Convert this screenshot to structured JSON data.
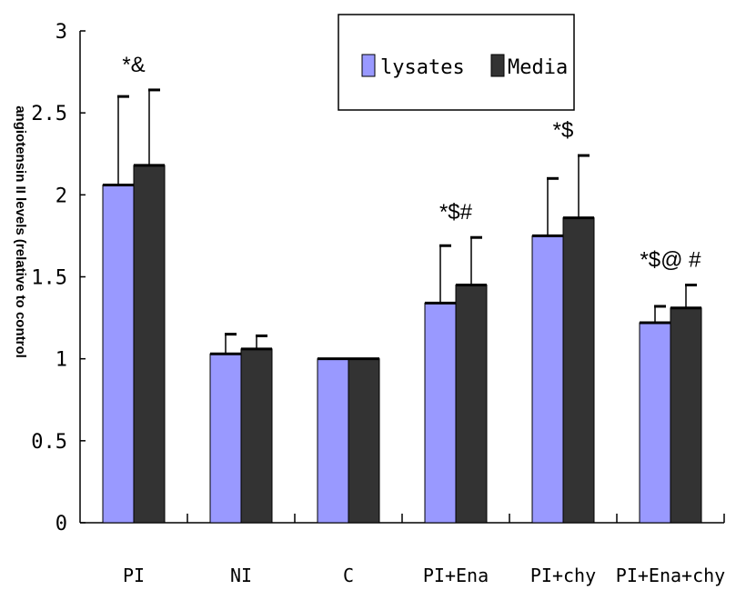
{
  "chart_data": {
    "type": "bar",
    "title": "",
    "xlabel": "",
    "ylabel": "angiotensin II levels (relative to control",
    "ylim": [
      0,
      3
    ],
    "yticks": [
      "0",
      "0.5",
      "1",
      "1.5",
      "2",
      "2.5",
      "3"
    ],
    "categories": [
      "PI",
      "NI",
      "C",
      "PI+Ena",
      "PI+chy",
      "PI+Ena+chy"
    ],
    "series": [
      {
        "name": "lysates",
        "color": "#9999ff",
        "values": [
          2.06,
          1.03,
          1.0,
          1.34,
          1.75,
          1.22
        ],
        "errors": [
          0.54,
          0.12,
          0.0,
          0.35,
          0.35,
          0.1
        ]
      },
      {
        "name": "Media",
        "color": "#333333",
        "values": [
          2.18,
          1.06,
          1.0,
          1.45,
          1.86,
          1.31
        ],
        "errors": [
          0.46,
          0.08,
          0.0,
          0.29,
          0.38,
          0.14
        ]
      }
    ],
    "annotations": [
      "*&",
      "",
      "",
      "*$#",
      "*$",
      "*$@ #"
    ],
    "legend_position": "top-center",
    "grid": false
  }
}
